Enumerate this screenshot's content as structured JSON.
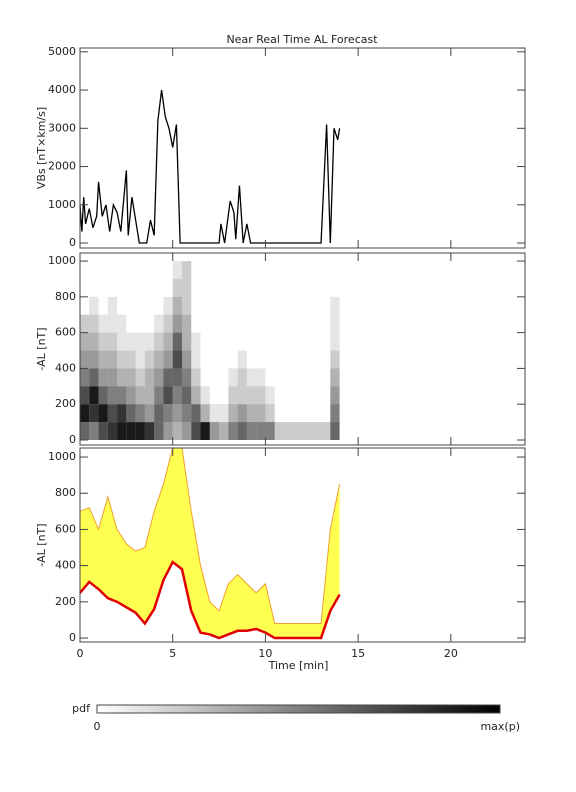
{
  "chart_data": [
    {
      "type": "line",
      "title": "Near Real Time AL Forecast",
      "y_label": "VBs [nT×km/s]",
      "xlim": [
        0,
        24
      ],
      "xticks": [
        0,
        5,
        10,
        15,
        20
      ],
      "ylim": [
        -130,
        5100
      ],
      "yticks": [
        0,
        1000,
        2000,
        3000,
        4000,
        5000
      ],
      "color": "#000000",
      "x": [
        0,
        0.1,
        0.2,
        0.3,
        0.5,
        0.7,
        0.9,
        1.0,
        1.2,
        1.4,
        1.6,
        1.8,
        2.0,
        2.2,
        2.5,
        2.6,
        2.8,
        3.2,
        3.6,
        3.8,
        4.0,
        4.2,
        4.4,
        4.6,
        4.8,
        5.0,
        5.2,
        5.4,
        7.5,
        7.6,
        7.8,
        8.1,
        8.3,
        8.4,
        8.6,
        8.8,
        9.0,
        9.2,
        13.0,
        13.3,
        13.5,
        13.7,
        13.9,
        14.0
      ],
      "values": [
        1000,
        300,
        1200,
        500,
        900,
        400,
        700,
        1600,
        700,
        1000,
        300,
        1000,
        800,
        300,
        1900,
        200,
        1200,
        0,
        0,
        600,
        200,
        3200,
        4000,
        3300,
        3000,
        2500,
        3100,
        0,
        0,
        500,
        0,
        1100,
        800,
        100,
        1500,
        0,
        500,
        0,
        0,
        3100,
        0,
        3000,
        2700,
        3000
      ]
    },
    {
      "type": "heatmap",
      "y_label": "-AL [nT]",
      "xlim": [
        0,
        24
      ],
      "xticks": [
        0,
        5,
        10,
        15,
        20
      ],
      "ylim": [
        -28,
        1045
      ],
      "yticks": [
        0,
        200,
        400,
        600,
        800,
        1000
      ],
      "x_edges": [
        0,
        0.5,
        1,
        1.5,
        2,
        2.5,
        3,
        3.5,
        4,
        4.5,
        5,
        5.5,
        6,
        6.5,
        7,
        7.5,
        8,
        8.5,
        9,
        9.5,
        10,
        10.5,
        11,
        11.5,
        12,
        12.5,
        13,
        13.5,
        14
      ],
      "y_edges": [
        0,
        100,
        200,
        300,
        400,
        500,
        600,
        700,
        800,
        900,
        1000
      ],
      "z": [
        [
          0.6,
          0.9,
          0.7,
          0.5,
          0.4,
          0.3,
          0.2,
          0,
          0,
          0
        ],
        [
          0.5,
          0.8,
          0.9,
          0.6,
          0.4,
          0.3,
          0.2,
          0.1,
          0,
          0
        ],
        [
          0.7,
          0.9,
          0.6,
          0.4,
          0.3,
          0.2,
          0.1,
          0,
          0,
          0
        ],
        [
          0.8,
          0.7,
          0.5,
          0.4,
          0.3,
          0.2,
          0.1,
          0.1,
          0,
          0
        ],
        [
          0.9,
          0.8,
          0.5,
          0.3,
          0.2,
          0.1,
          0.1,
          0,
          0,
          0
        ],
        [
          0.9,
          0.6,
          0.4,
          0.3,
          0.2,
          0.1,
          0,
          0,
          0,
          0
        ],
        [
          0.9,
          0.5,
          0.3,
          0.2,
          0.1,
          0.1,
          0,
          0,
          0,
          0
        ],
        [
          0.8,
          0.4,
          0.3,
          0.3,
          0.2,
          0.1,
          0,
          0,
          0,
          0
        ],
        [
          0.6,
          0.6,
          0.5,
          0.4,
          0.3,
          0.2,
          0.1,
          0,
          0,
          0
        ],
        [
          0.4,
          0.5,
          0.7,
          0.6,
          0.4,
          0.3,
          0.2,
          0.1,
          0,
          0
        ],
        [
          0.3,
          0.4,
          0.5,
          0.6,
          0.7,
          0.6,
          0.4,
          0.3,
          0.2,
          0.1
        ],
        [
          0.4,
          0.5,
          0.6,
          0.5,
          0.4,
          0.3,
          0.3,
          0.2,
          0.2,
          0.2
        ],
        [
          0.7,
          0.6,
          0.3,
          0.2,
          0.1,
          0.1,
          0,
          0,
          0,
          0
        ],
        [
          0.9,
          0.3,
          0.1,
          0,
          0,
          0,
          0,
          0,
          0,
          0
        ],
        [
          0.4,
          0.1,
          0,
          0,
          0,
          0,
          0,
          0,
          0,
          0
        ],
        [
          0.3,
          0.1,
          0,
          0,
          0,
          0,
          0,
          0,
          0,
          0
        ],
        [
          0.5,
          0.3,
          0.2,
          0.1,
          0,
          0,
          0,
          0,
          0,
          0
        ],
        [
          0.6,
          0.4,
          0.2,
          0.2,
          0.1,
          0,
          0,
          0,
          0,
          0
        ],
        [
          0.5,
          0.3,
          0.2,
          0.1,
          0,
          0,
          0,
          0,
          0,
          0
        ],
        [
          0.5,
          0.3,
          0.2,
          0.1,
          0,
          0,
          0,
          0,
          0,
          0
        ],
        [
          0.5,
          0.2,
          0.1,
          0,
          0,
          0,
          0,
          0,
          0,
          0
        ],
        [
          0.2,
          0,
          0,
          0,
          0,
          0,
          0,
          0,
          0,
          0
        ],
        [
          0.2,
          0,
          0,
          0,
          0,
          0,
          0,
          0,
          0,
          0
        ],
        [
          0.2,
          0,
          0,
          0,
          0,
          0,
          0,
          0,
          0,
          0
        ],
        [
          0.2,
          0,
          0,
          0,
          0,
          0,
          0,
          0,
          0,
          0
        ],
        [
          0.2,
          0,
          0,
          0,
          0,
          0,
          0,
          0,
          0,
          0
        ],
        [
          0.2,
          0,
          0,
          0,
          0,
          0,
          0,
          0,
          0,
          0
        ],
        [
          0.6,
          0.5,
          0.4,
          0.3,
          0.2,
          0.1,
          0.1,
          0.1,
          0,
          0
        ]
      ]
    },
    {
      "type": "band",
      "y_label": "-AL [nT]",
      "x_label": "Time [min]",
      "xlim": [
        0,
        24
      ],
      "xticks": [
        0,
        5,
        10,
        15,
        20
      ],
      "ylim": [
        -22,
        1050
      ],
      "yticks": [
        0,
        200,
        400,
        600,
        800,
        1000
      ],
      "fill_color": "#ffff33",
      "x": [
        0,
        0.5,
        1,
        1.5,
        2,
        2.5,
        3,
        3.5,
        4,
        4.5,
        5,
        5.5,
        6,
        6.5,
        7,
        7.5,
        8,
        8.5,
        9,
        9.5,
        10,
        10.5,
        11,
        11.5,
        12,
        12.5,
        13,
        13.5,
        14
      ],
      "series": [
        {
          "color": "#e00000",
          "values": [
            250,
            310,
            270,
            220,
            200,
            170,
            140,
            80,
            160,
            320,
            420,
            380,
            150,
            30,
            20,
            0,
            20,
            40,
            40,
            50,
            30,
            0,
            0,
            0,
            0,
            0,
            0,
            150,
            240
          ]
        },
        {
          "color": "#f0a030",
          "values": [
            700,
            720,
            600,
            780,
            600,
            520,
            480,
            500,
            700,
            850,
            1050,
            1050,
            700,
            400,
            200,
            150,
            300,
            350,
            300,
            250,
            300,
            80,
            80,
            80,
            80,
            80,
            80,
            600,
            850
          ]
        }
      ]
    }
  ],
  "colorbar": {
    "label": "pdf",
    "min_label": "0",
    "max_label": "max(p)"
  }
}
